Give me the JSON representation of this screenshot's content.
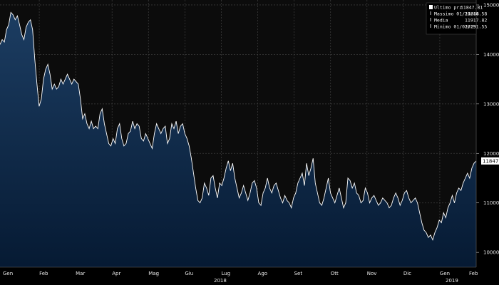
{
  "chart_data": {
    "type": "area",
    "title": "",
    "xlabel": "",
    "ylabel": "",
    "ylim": [
      9700,
      15100
    ],
    "y_ticks": [
      10000,
      11000,
      12000,
      13000,
      14000,
      15000
    ],
    "x_tick_labels": [
      "Gen",
      "Feb",
      "Mar",
      "Apr",
      "Mag",
      "Giu",
      "Lug",
      "Ago",
      "Set",
      "Ott",
      "Nov",
      "Dic",
      "Gen",
      "Feb"
    ],
    "year_labels": [
      "2018",
      "2019"
    ],
    "grid": true,
    "legend_position": "top-right",
    "legend": [
      {
        "label": "Ultimo prz",
        "value": "11847.81"
      },
      {
        "label": "Massimo 01/23/18",
        "value": "14844.58"
      },
      {
        "label": "Media",
        "value": "11917.82"
      },
      {
        "label": "Minimo 01/02/19",
        "value": "10251.55"
      }
    ],
    "last_value_label": "11847.81",
    "colors": {
      "line": "#ffffff",
      "fill_top": "#1c3d62",
      "fill_bottom": "#061a33",
      "background": "#000000"
    },
    "series": [
      {
        "values": [
          14200,
          14300,
          14250,
          14500,
          14600,
          14850,
          14800,
          14700,
          14780,
          14600,
          14400,
          14300,
          14550,
          14650,
          14700,
          14500,
          13900,
          13400,
          12950,
          13100,
          13500,
          13700,
          13800,
          13600,
          13300,
          13400,
          13300,
          13350,
          13500,
          13400,
          13500,
          13600,
          13500,
          13400,
          13500,
          13450,
          13400,
          13100,
          12700,
          12800,
          12600,
          12500,
          12650,
          12500,
          12550,
          12500,
          12800,
          12900,
          12600,
          12400,
          12200,
          12150,
          12300,
          12200,
          12500,
          12600,
          12300,
          12150,
          12200,
          12400,
          12450,
          12650,
          12500,
          12600,
          12550,
          12300,
          12250,
          12400,
          12300,
          12200,
          12100,
          12400,
          12600,
          12500,
          12400,
          12500,
          12550,
          12200,
          12300,
          12600,
          12500,
          12650,
          12400,
          12550,
          12600,
          12400,
          12300,
          12150,
          11900,
          11600,
          11300,
          11050,
          11000,
          11100,
          11400,
          11300,
          11150,
          11500,
          11550,
          11300,
          11100,
          11400,
          11350,
          11500,
          11700,
          11850,
          11650,
          11800,
          11500,
          11300,
          11100,
          11200,
          11350,
          11200,
          11050,
          11200,
          11400,
          11450,
          11300,
          11000,
          10950,
          11200,
          11300,
          11500,
          11300,
          11200,
          11350,
          11400,
          11250,
          11100,
          11000,
          11150,
          11050,
          11000,
          10900,
          11100,
          11200,
          11400,
          11500,
          11600,
          11350,
          11800,
          11550,
          11700,
          11900,
          11400,
          11200,
          11000,
          10950,
          11100,
          11300,
          11500,
          11200,
          11100,
          11000,
          11150,
          11300,
          11100,
          10900,
          11000,
          11500,
          11450,
          11300,
          11400,
          11200,
          11150,
          11000,
          11050,
          11300,
          11200,
          11000,
          11100,
          11150,
          11050,
          10950,
          11000,
          11100,
          11050,
          11000,
          10900,
          10950,
          11100,
          11200,
          11100,
          10950,
          11050,
          11200,
          11250,
          11100,
          11000,
          11050,
          11100,
          11000,
          10800,
          10600,
          10450,
          10400,
          10300,
          10350,
          10251,
          10400,
          10500,
          10650,
          10600,
          10800,
          10700,
          10900,
          11000,
          11150,
          11000,
          11200,
          11300,
          11250,
          11400,
          11500,
          11600,
          11500,
          11700,
          11800,
          11847
        ]
      }
    ]
  }
}
